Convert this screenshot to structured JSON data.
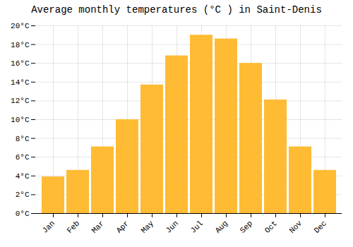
{
  "chart_data": {
    "type": "bar",
    "title": "Average monthly temperatures (°C ) in Saint-Denis",
    "categories": [
      "Jan",
      "Feb",
      "Mar",
      "Apr",
      "May",
      "Jun",
      "Jul",
      "Aug",
      "Sep",
      "Oct",
      "Nov",
      "Dec"
    ],
    "values": [
      3.9,
      4.6,
      7.1,
      10.0,
      13.7,
      16.8,
      19.0,
      18.6,
      16.0,
      12.1,
      7.1,
      4.6
    ],
    "color": "#FFBB33",
    "ylim": [
      0,
      20
    ],
    "yticks": [
      {
        "value": 0,
        "label": "0°C"
      },
      {
        "value": 2,
        "label": "2°C"
      },
      {
        "value": 4,
        "label": "4°C"
      },
      {
        "value": 6,
        "label": "6°C"
      },
      {
        "value": 8,
        "label": "8°C"
      },
      {
        "value": 10,
        "label": "10°C"
      },
      {
        "value": 12,
        "label": "12°C"
      },
      {
        "value": 14,
        "label": "14°C"
      },
      {
        "value": 16,
        "label": "16°C"
      },
      {
        "value": 18,
        "label": "18°C"
      },
      {
        "value": 20,
        "label": "20°C"
      }
    ],
    "grid": true
  }
}
